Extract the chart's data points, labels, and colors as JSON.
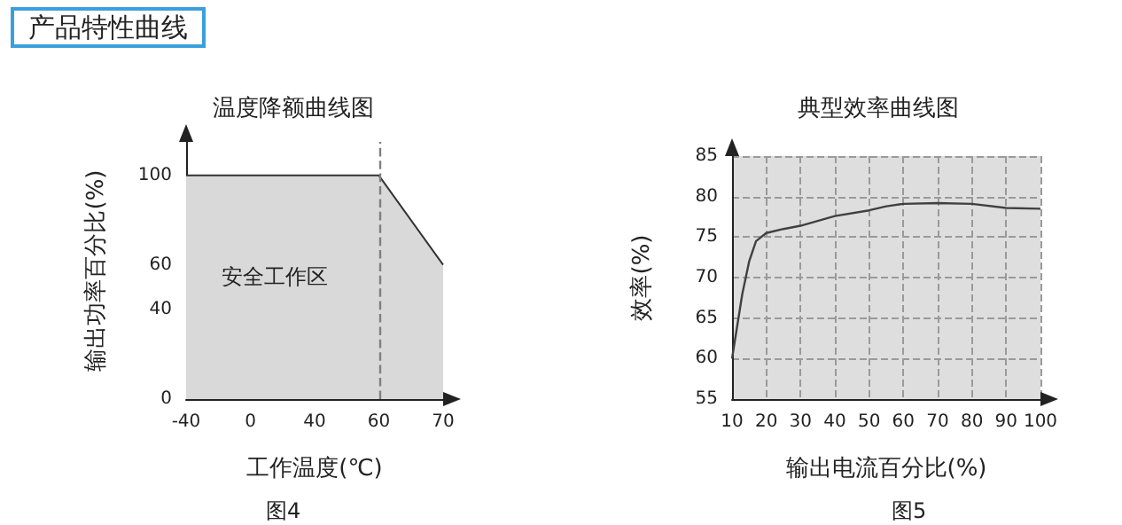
{
  "chart_data": [
    {
      "type": "area",
      "title": "温度降额曲线图",
      "xlabel": "工作温度(℃)",
      "ylabel": "输出功率百分比(%)",
      "categories": [
        "-40",
        "0",
        "40",
        "60",
        "70"
      ],
      "series": [
        {
          "color": "#d9d9d9",
          "values": [
            100,
            100,
            100,
            100,
            60
          ]
        }
      ],
      "ylim": [
        0,
        115
      ],
      "yticks": [
        0,
        40,
        60,
        100
      ],
      "grid": false,
      "ref_lines": [
        {
          "axis": "x",
          "value": "60",
          "color": "#808080",
          "line_style": "dashed"
        }
      ],
      "annotations": [
        "产品特性曲线",
        "安全工作区",
        "图4"
      ]
    },
    {
      "type": "line",
      "title": "典型效率曲线图",
      "xlabel": "输出电流百分比(%)",
      "ylabel": "效率(%)",
      "x": [
        10,
        13,
        15,
        17,
        20,
        25,
        30,
        35,
        40,
        50,
        55,
        60,
        70,
        80,
        90,
        100
      ],
      "series": [
        {
          "color": "#404040",
          "values": [
            60,
            68,
            72,
            74.5,
            75.5,
            76,
            76.4,
            77,
            77.6,
            78.3,
            78.8,
            79.1,
            79.2,
            79.1,
            78.6,
            78.5
          ]
        }
      ],
      "xlim": [
        10,
        100
      ],
      "xticks": [
        10,
        20,
        30,
        40,
        50,
        60,
        70,
        80,
        90,
        100
      ],
      "ylim": [
        55,
        85
      ],
      "yticks": [
        55,
        60,
        65,
        70,
        75,
        80,
        85
      ],
      "grid": true,
      "marker": "none",
      "line_style": "solid",
      "annotations": [
        "图5"
      ]
    }
  ]
}
